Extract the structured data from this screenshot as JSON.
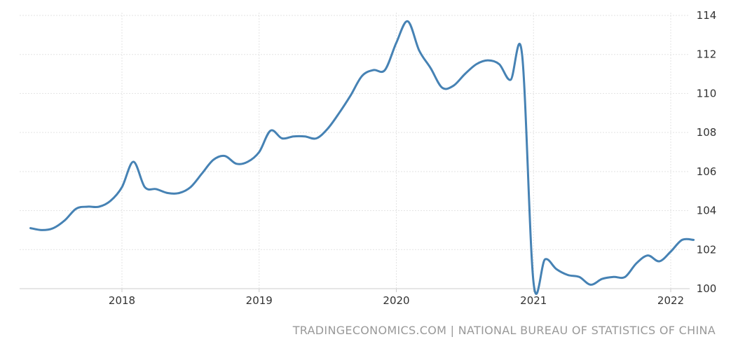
{
  "chart_data": {
    "type": "line",
    "title": "",
    "xlabel": "",
    "ylabel": "",
    "ylim": [
      100,
      114
    ],
    "y_ticks": [
      100,
      102,
      104,
      106,
      108,
      110,
      112,
      114
    ],
    "y_axis_side": "right",
    "x_ticks": [
      "2018",
      "2019",
      "2020",
      "2021",
      "2022"
    ],
    "grid": "dotted vertical and horizontal gridlines",
    "line_color": "#4682b4",
    "series": [
      {
        "name": "",
        "x": [
          "2017-05",
          "2017-06",
          "2017-07",
          "2017-08",
          "2017-09",
          "2017-10",
          "2017-11",
          "2017-12",
          "2018-01",
          "2018-02",
          "2018-03",
          "2018-04",
          "2018-05",
          "2018-06",
          "2018-07",
          "2018-08",
          "2018-09",
          "2018-10",
          "2018-11",
          "2018-12",
          "2019-01",
          "2019-02",
          "2019-03",
          "2019-04",
          "2019-05",
          "2019-06",
          "2019-07",
          "2019-08",
          "2019-09",
          "2019-10",
          "2019-11",
          "2019-12",
          "2020-01",
          "2020-02",
          "2020-03",
          "2020-04",
          "2020-05",
          "2020-06",
          "2020-07",
          "2020-08",
          "2020-09",
          "2020-10",
          "2020-11",
          "2020-12",
          "2021-01",
          "2021-02",
          "2021-03",
          "2021-04",
          "2021-05",
          "2021-06",
          "2021-07",
          "2021-08",
          "2021-09",
          "2021-10",
          "2021-11",
          "2021-12",
          "2022-01",
          "2022-02",
          "2022-03"
        ],
        "values": [
          103.1,
          103.0,
          103.1,
          103.5,
          104.1,
          104.2,
          104.2,
          104.5,
          105.2,
          106.5,
          105.2,
          105.1,
          104.9,
          104.9,
          105.2,
          105.9,
          106.6,
          106.8,
          106.4,
          106.5,
          107.0,
          108.1,
          107.7,
          107.8,
          107.8,
          107.7,
          108.2,
          109.0,
          109.9,
          110.9,
          111.2,
          111.2,
          112.6,
          113.7,
          112.2,
          111.3,
          110.3,
          110.4,
          111.0,
          111.5,
          111.7,
          111.5,
          110.7,
          112.0,
          100.3,
          101.5,
          101.0,
          100.7,
          100.6,
          100.2,
          100.5,
          100.6,
          100.6,
          101.3,
          101.7,
          101.4,
          101.9,
          102.5,
          102.5
        ]
      }
    ]
  },
  "source": "TRADINGECONOMICS.COM | NATIONAL BUREAU OF STATISTICS OF CHINA"
}
